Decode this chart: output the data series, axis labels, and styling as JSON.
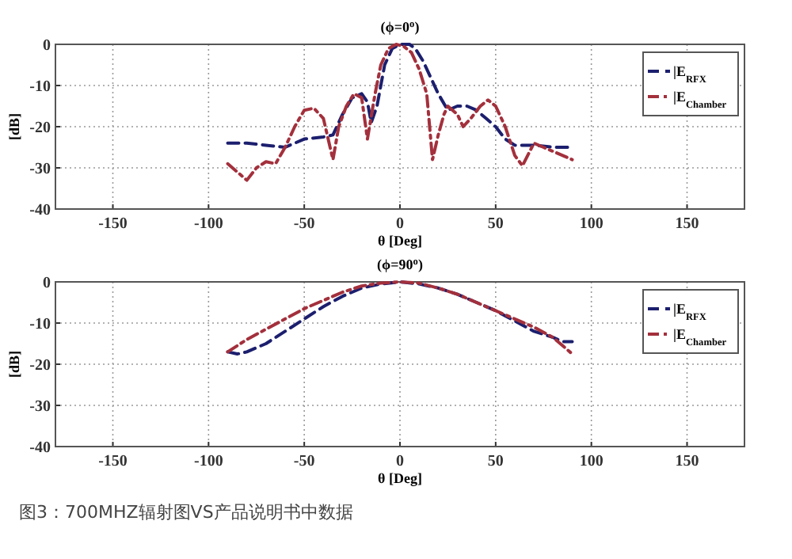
{
  "chart_data": [
    {
      "type": "line",
      "title": "(ϕ=0$^{o}$)",
      "xlabel": "θ [Deg]",
      "ylabel": "[dB]",
      "xlim": [
        -180,
        180
      ],
      "ylim": [
        -40,
        0
      ],
      "xticks": [
        -150,
        -100,
        -50,
        0,
        50,
        100,
        150
      ],
      "yticks": [
        -40,
        -30,
        -20,
        -10,
        0
      ],
      "grid": true,
      "legend": "top right",
      "series": [
        {
          "name": "|E$_{RFX}$",
          "color": "#1c1f6e",
          "line_style": "dashed",
          "x": [
            -90,
            -80,
            -70,
            -60,
            -55,
            -50,
            -40,
            -35,
            -30,
            -25,
            -20,
            -17,
            -15,
            -12,
            -8,
            -4,
            0,
            5,
            8,
            12,
            16,
            20,
            25,
            30,
            35,
            40,
            45,
            50,
            55,
            60,
            70,
            80,
            90
          ],
          "values": [
            -24,
            -24,
            -24.5,
            -25,
            -24,
            -23,
            -22.5,
            -22,
            -17,
            -13,
            -12,
            -14,
            -19,
            -15,
            -5,
            -1,
            0,
            0,
            -1,
            -4,
            -8,
            -12,
            -16,
            -15,
            -15,
            -16,
            -18,
            -20,
            -23,
            -24.5,
            -24.5,
            -25,
            -25
          ]
        },
        {
          "name": "|E$_{Chamber}$",
          "color": "#a3303c",
          "line_style": "dashdot",
          "x": [
            -90,
            -85,
            -80,
            -75,
            -70,
            -65,
            -60,
            -55,
            -50,
            -45,
            -40,
            -35,
            -32,
            -28,
            -24,
            -20,
            -17,
            -13,
            -10,
            -6,
            -2,
            2,
            6,
            10,
            14,
            17,
            20,
            23,
            25,
            30,
            33,
            37,
            42,
            46,
            50,
            55,
            60,
            64,
            70,
            75,
            80,
            85,
            90
          ],
          "values": [
            -29,
            -31,
            -33,
            -30,
            -28.5,
            -29,
            -25,
            -20,
            -16,
            -15.5,
            -18,
            -28,
            -20,
            -15,
            -12,
            -13,
            -23,
            -12,
            -5,
            -1,
            0,
            -0.5,
            -2,
            -6,
            -12,
            -28,
            -22,
            -17,
            -15,
            -17,
            -20,
            -18,
            -15,
            -13.5,
            -15,
            -20,
            -27,
            -29.5,
            -24,
            -25,
            -26,
            -27,
            -28
          ]
        }
      ]
    },
    {
      "type": "line",
      "title": "(ϕ=90$^{o}$)",
      "xlabel": "θ [Deg]",
      "ylabel": "[dB]",
      "xlim": [
        -180,
        180
      ],
      "ylim": [
        -40,
        0
      ],
      "xticks": [
        -150,
        -100,
        -50,
        0,
        50,
        100,
        150
      ],
      "yticks": [
        -40,
        -30,
        -20,
        -10,
        0
      ],
      "grid": true,
      "legend": "top right",
      "annotations": [
        "图3：700MHZ辐射图VS产品说明书中数据"
      ],
      "series": [
        {
          "name": "|E$_{RFX}$",
          "color": "#1c1f6e",
          "line_style": "dashed",
          "x": [
            -90,
            -85,
            -80,
            -70,
            -60,
            -50,
            -40,
            -30,
            -20,
            -10,
            0,
            10,
            20,
            30,
            40,
            50,
            60,
            70,
            80,
            85,
            90
          ],
          "values": [
            -17,
            -17.5,
            -17,
            -15,
            -12,
            -9,
            -6,
            -3.5,
            -1.5,
            -0.5,
            0,
            -0.5,
            -1.5,
            -3,
            -5,
            -7,
            -9.5,
            -12,
            -13.5,
            -14.5,
            -14.5
          ]
        },
        {
          "name": "|E$_{Chamber}$",
          "color": "#a3303c",
          "line_style": "dashdot",
          "x": [
            -90,
            -80,
            -70,
            -60,
            -50,
            -40,
            -30,
            -20,
            -10,
            0,
            10,
            20,
            30,
            40,
            50,
            60,
            70,
            80,
            90
          ],
          "values": [
            -17,
            -14,
            -11.5,
            -9,
            -6.5,
            -4.5,
            -2.5,
            -1,
            -0.3,
            0,
            -0.3,
            -1.5,
            -3,
            -5,
            -7,
            -9,
            -11,
            -13.5,
            -17.5
          ]
        }
      ]
    }
  ]
}
